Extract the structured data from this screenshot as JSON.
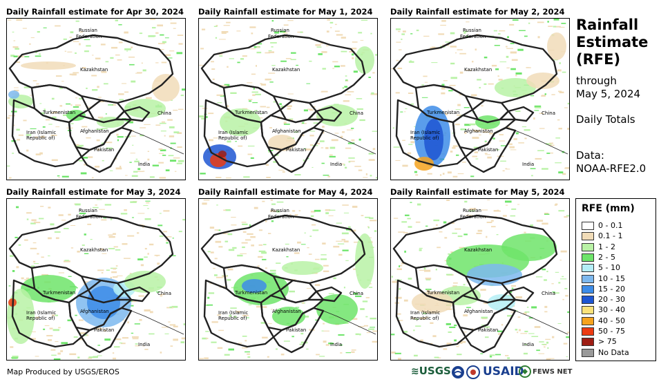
{
  "panels": [
    {
      "title": "Daily Rainfall estimate for Apr 30, 2024"
    },
    {
      "title": "Daily Rainfall estimate for May 1, 2024"
    },
    {
      "title": "Daily Rainfall estimate for May 2, 2024"
    },
    {
      "title": "Daily Rainfall estimate for May 3, 2024"
    },
    {
      "title": "Daily Rainfall estimate for May 4, 2024"
    },
    {
      "title": "Daily Rainfall estimate for May 5, 2024"
    }
  ],
  "map_labels": {
    "russia": "Russian",
    "russia2": "Federation",
    "kazakhstan": "Kazakhstan",
    "turkmenistan": "Turkmenistan",
    "china": "China",
    "iran": "Iran  (Islamic",
    "iran2": "Republic of)",
    "afghanistan": "Afghanistan",
    "pakistan": "Pakistan",
    "india": "India"
  },
  "side": {
    "title_line1": "Rainfall",
    "title_line2": "Estimate",
    "title_line3": "(RFE)",
    "through": "through",
    "through_date": "May 5, 2024",
    "daily_totals": "Daily Totals",
    "data_label": "Data:",
    "data_source": "NOAA-RFE2.0"
  },
  "legend": {
    "title": "RFE (mm)",
    "items": [
      {
        "label": "0 - 0.1",
        "color": "#ffffff"
      },
      {
        "label": "0.1 - 1",
        "color": "#f1dcb8"
      },
      {
        "label": "1 - 2",
        "color": "#b9f2a6"
      },
      {
        "label": "2 - 5",
        "color": "#6ee46a"
      },
      {
        "label": "5 - 10",
        "color": "#b4eef6"
      },
      {
        "label": "10 - 15",
        "color": "#7db8ee"
      },
      {
        "label": "15 - 20",
        "color": "#3d8ce8"
      },
      {
        "label": "20 - 30",
        "color": "#1e56d2"
      },
      {
        "label": "30 - 40",
        "color": "#fbe27a"
      },
      {
        "label": "40 - 50",
        "color": "#f6a31e"
      },
      {
        "label": "50 - 75",
        "color": "#ec3b12"
      },
      {
        "label": "> 75",
        "color": "#9e1d14"
      },
      {
        "label": "No Data",
        "color": "#999999"
      }
    ]
  },
  "credit": "Map Produced by USGS/EROS",
  "logos": {
    "usgs": "USGS",
    "usaid": "USAID",
    "fewsnet": "FEWS NET"
  }
}
